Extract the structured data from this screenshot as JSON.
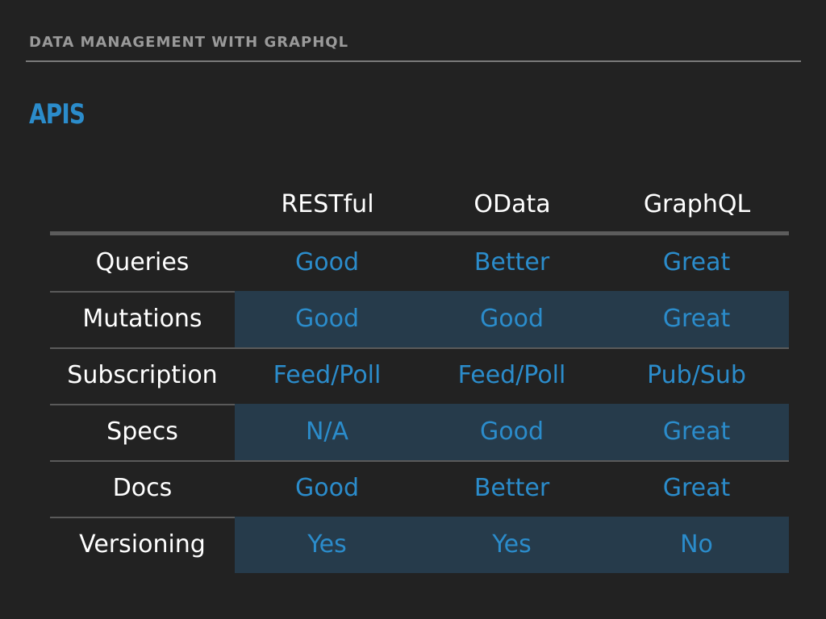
{
  "header": {
    "section_title": "DATA MANAGEMENT WITH GRAPHQL"
  },
  "slide": {
    "title": "APIS"
  },
  "table": {
    "columns": [
      "RESTful",
      "OData",
      "GraphQL"
    ],
    "rows": [
      {
        "label": "Queries",
        "values": [
          "Good",
          "Better",
          "Great"
        ]
      },
      {
        "label": "Mutations",
        "values": [
          "Good",
          "Good",
          "Great"
        ]
      },
      {
        "label": "Subscription",
        "values": [
          "Feed/Poll",
          "Feed/Poll",
          "Pub/Sub"
        ]
      },
      {
        "label": "Specs",
        "values": [
          "N/A",
          "Good",
          "Great"
        ]
      },
      {
        "label": "Docs",
        "values": [
          "Good",
          "Better",
          "Great"
        ]
      },
      {
        "label": "Versioning",
        "values": [
          "Yes",
          "Yes",
          "No"
        ]
      }
    ]
  },
  "colors": {
    "background": "#222222",
    "accent": "#2b8ccb",
    "shaded_row": "#263b4b"
  }
}
